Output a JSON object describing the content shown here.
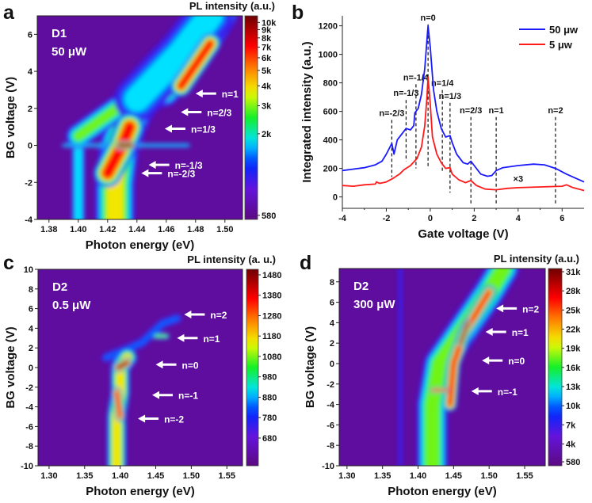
{
  "chart_data": [
    {
      "panel": "a",
      "type": "heatmap",
      "sample": "D1",
      "power": "50 μW",
      "xlabel": "Photon energy (eV)",
      "ylabel": "BG voltage (V)",
      "xlim": [
        1.372,
        1.512
      ],
      "ylim": [
        -4,
        7
      ],
      "xticks": [
        "1.38",
        "1.40",
        "1.42",
        "1.44",
        "1.46",
        "1.48",
        "1.50"
      ],
      "yticks": [
        "-4",
        "-2",
        "0",
        "2",
        "4",
        "6"
      ],
      "colorbar": {
        "title": "PL intensity (a.u.)",
        "scale": "log",
        "range": [
          580,
          11000
        ],
        "ticks": [
          "10k",
          "9k",
          "8k",
          "7k",
          "6k",
          "5k",
          "4k",
          "3k",
          "2k",
          "580"
        ],
        "tick_values": [
          10000,
          9000,
          8000,
          7000,
          6000,
          5000,
          4000,
          3000,
          2000,
          580
        ]
      },
      "ridges": [
        {
          "points": [
            [
              1.4,
              -4
            ],
            [
              1.4,
              0.2
            ]
          ],
          "peak": 0.45,
          "width": 0.012
        },
        {
          "points": [
            [
              1.425,
              -4
            ],
            [
              1.425,
              -2
            ],
            [
              1.428,
              0
            ],
            [
              1.435,
              1.5
            ],
            [
              1.44,
              2.3
            ]
          ],
          "peak": 0.7,
          "width": 0.03
        },
        {
          "points": [
            [
              1.4,
              0.5
            ],
            [
              1.43,
              2.2
            ],
            [
              1.46,
              2.8
            ],
            [
              1.48,
              4.5
            ],
            [
              1.5,
              7
            ]
          ],
          "peak": 0.55,
          "width": 0.02
        },
        {
          "points": [
            [
              1.44,
              2.5
            ],
            [
              1.47,
              5
            ],
            [
              1.49,
              7
            ]
          ],
          "peak": 0.45,
          "width": 0.04
        },
        {
          "points": [
            [
              1.39,
              0
            ],
            [
              1.475,
              0
            ]
          ],
          "peak": 0.38,
          "width": 0.004
        },
        {
          "points": [
            [
              1.42,
              -1.5
            ],
            [
              1.43,
              0
            ],
            [
              1.435,
              1
            ]
          ],
          "peak": 0.9,
          "width": 0.02
        },
        {
          "points": [
            [
              1.47,
              3.2
            ],
            [
              1.49,
              5.5
            ]
          ],
          "peak": 0.85,
          "width": 0.015
        },
        {
          "points": [
            [
              1.428,
              0
            ],
            [
              1.436,
              0
            ]
          ],
          "peak": 1.0,
          "width": 0.006
        }
      ],
      "annotations": [
        {
          "label": "n=1",
          "x": 1.48,
          "y": 2.8
        },
        {
          "label": "n=2/3",
          "x": 1.47,
          "y": 1.8
        },
        {
          "label": "n=1/3",
          "x": 1.459,
          "y": 0.9
        },
        {
          "label": "n=-1/3",
          "x": 1.448,
          "y": -1.05
        },
        {
          "label": "n=-2/3",
          "x": 1.443,
          "y": -1.5
        }
      ]
    },
    {
      "panel": "b",
      "type": "line",
      "xlabel": "Gate voltage (V)",
      "ylabel": "Integrated intensity (a.u.)",
      "xlim": [
        -4,
        7
      ],
      "ylim": [
        -80,
        1270
      ],
      "xticks": [
        "-4",
        "-2",
        "0",
        "2",
        "4",
        "6"
      ],
      "xtick_values": [
        -4,
        -2,
        0,
        2,
        4,
        6
      ],
      "yticks": [
        "0",
        "200",
        "400",
        "600",
        "800",
        "1000",
        "1200"
      ],
      "ytick_values": [
        0,
        200,
        400,
        600,
        800,
        1000,
        1200
      ],
      "legend_position": "top-right",
      "series": [
        {
          "name": "50 μw",
          "color": "#1a1aff",
          "x": [
            -4,
            -3.5,
            -3,
            -2.5,
            -2.2,
            -2,
            -1.75,
            -1.65,
            -1.5,
            -1.2,
            -1.1,
            -0.9,
            -0.75,
            -0.7,
            -0.55,
            -0.4,
            -0.25,
            -0.1,
            0,
            0.15,
            0.3,
            0.5,
            0.7,
            0.9,
            1.0,
            1.2,
            1.5,
            1.7,
            1.85,
            2.0,
            2.3,
            2.6,
            2.8,
            3.0,
            3.3,
            4,
            4.7,
            5.2,
            5.7,
            6.2,
            7
          ],
          "y": [
            185,
            195,
            205,
            225,
            250,
            300,
            375,
            300,
            400,
            460,
            480,
            470,
            500,
            590,
            620,
            720,
            900,
            1200,
            1050,
            750,
            600,
            480,
            420,
            430,
            380,
            300,
            240,
            230,
            250,
            220,
            160,
            145,
            150,
            185,
            205,
            220,
            230,
            225,
            200,
            160,
            105
          ]
        },
        {
          "name": "5 μw",
          "color": "#ff1a1a",
          "x": [
            -4,
            -3.5,
            -3,
            -2.5,
            -2.45,
            -2.3,
            -2,
            -1.7,
            -1.4,
            -1.2,
            -0.9,
            -0.6,
            -0.4,
            -0.25,
            -0.15,
            -0.1,
            0,
            0.1,
            0.3,
            0.5,
            0.7,
            0.9,
            1.0,
            1.3,
            1.6,
            1.85,
            2.1,
            2.5,
            3,
            3.5,
            4,
            5,
            6,
            6.2,
            6.5,
            7
          ],
          "y": [
            80,
            75,
            85,
            90,
            105,
            95,
            105,
            130,
            160,
            190,
            220,
            270,
            350,
            500,
            700,
            840,
            650,
            420,
            300,
            240,
            200,
            205,
            160,
            120,
            100,
            115,
            80,
            55,
            50,
            60,
            65,
            70,
            75,
            85,
            65,
            45
          ]
        }
      ],
      "multiplier_note": {
        "label": "×3",
        "x": 4.0,
        "y": 105
      },
      "markers": [
        {
          "label": "n=-2/3",
          "x": -1.75,
          "y_top": 540,
          "y_bottom": 140
        },
        {
          "label": "n=-1/3",
          "x": -1.1,
          "y_top": 680,
          "y_bottom": 250
        },
        {
          "label": "n=-1/4",
          "x": -0.65,
          "y_top": 790,
          "y_bottom": 200
        },
        {
          "label": "n=0",
          "x": -0.1,
          "y_top": 1210,
          "y_bottom": 200
        },
        {
          "label": "n=1/4",
          "x": 0.55,
          "y_top": 750,
          "y_bottom": 170
        },
        {
          "label": "n=1/3",
          "x": 0.9,
          "y_top": 660,
          "y_bottom": 30
        },
        {
          "label": "n=2/3",
          "x": 1.85,
          "y_top": 560,
          "y_bottom": -60
        },
        {
          "label": "n=1",
          "x": 3.0,
          "y_top": 560,
          "y_bottom": -60
        },
        {
          "label": "n=2",
          "x": 5.7,
          "y_top": 560,
          "y_bottom": -60
        }
      ]
    },
    {
      "panel": "c",
      "type": "heatmap",
      "sample": "D2",
      "power": "0.5 μW",
      "xlabel": "Photon energy (eV)",
      "ylabel": "BG voltage (V)",
      "xlim": [
        1.2845,
        1.572
      ],
      "ylim": [
        -10,
        10
      ],
      "xticks": [
        "1.30",
        "1.35",
        "1.40",
        "1.45",
        "1.50",
        "1.55"
      ],
      "yticks": [
        "-10",
        "-8",
        "-6",
        "-4",
        "-2",
        "0",
        "2",
        "4",
        "6",
        "8",
        "10"
      ],
      "colorbar": {
        "title": "PL intensity (a. u.)",
        "scale": "linear",
        "range": [
          544,
          1507
        ],
        "ticks": [
          "1480",
          "1380",
          "1280",
          "1180",
          "1080",
          "980",
          "880",
          "780",
          "680"
        ],
        "tick_values": [
          1480,
          1380,
          1280,
          1180,
          1080,
          980,
          880,
          780,
          680
        ]
      },
      "ridges": [
        {
          "points": [
            [
              1.38,
              1
            ],
            [
              1.43,
              2.5
            ],
            [
              1.46,
              4.5
            ],
            [
              1.48,
              5
            ]
          ],
          "peak": 0.33,
          "width": 0.02
        },
        {
          "points": [
            [
              1.395,
              -10
            ],
            [
              1.395,
              -5
            ],
            [
              1.4,
              -2.5
            ],
            [
              1.4,
              0
            ],
            [
              1.41,
              1
            ]
          ],
          "peak": 0.72,
          "width": 0.03
        },
        {
          "points": [
            [
              1.45,
              3.2
            ],
            [
              1.465,
              3.2
            ]
          ],
          "peak": 0.55,
          "width": 0.01
        },
        {
          "points": [
            [
              1.395,
              -2.5
            ],
            [
              1.4,
              -5
            ]
          ],
          "peak": 0.88,
          "width": 0.015
        },
        {
          "points": [
            [
              1.397,
              0
            ],
            [
              1.41,
              0.5
            ]
          ],
          "peak": 0.96,
          "width": 0.015
        }
      ],
      "annotations": [
        {
          "label": "n=2",
          "x": 1.49,
          "y": 5.4
        },
        {
          "label": "n=1",
          "x": 1.48,
          "y": 3.0
        },
        {
          "label": "n=0",
          "x": 1.45,
          "y": 0.3
        },
        {
          "label": "n=-1",
          "x": 1.445,
          "y": -2.8
        },
        {
          "label": "n=-2",
          "x": 1.425,
          "y": -5.2
        }
      ]
    },
    {
      "panel": "d",
      "type": "heatmap",
      "sample": "D2",
      "power": "300 μW",
      "xlabel": "Photon energy (eV)",
      "ylabel": "BG voltage (V)",
      "xlim": [
        1.289,
        1.579
      ],
      "ylim": [
        -10,
        9.3
      ],
      "xticks": [
        "1.30",
        "1.35",
        "1.40",
        "1.45",
        "1.50",
        "1.55"
      ],
      "yticks": [
        "-10",
        "-8",
        "-6",
        "-4",
        "-2",
        "0",
        "2",
        "4",
        "6",
        "8"
      ],
      "colorbar": {
        "title": "PL intensity (a.u.)",
        "scale": "linear",
        "range": [
          580,
          31500
        ],
        "ticks": [
          "31k",
          "28k",
          "25k",
          "22k",
          "19k",
          "16k",
          "13k",
          "10k",
          "7k",
          "4k",
          "580"
        ],
        "tick_values": [
          31000,
          28000,
          25000,
          22000,
          19000,
          16000,
          13000,
          10000,
          7000,
          4000,
          580
        ]
      },
      "ridges": [
        {
          "points": [
            [
              1.375,
              -10
            ],
            [
              1.375,
              9.3
            ]
          ],
          "peak": 0.2,
          "width": 0.02
        },
        {
          "points": [
            [
              1.42,
              -10
            ],
            [
              1.42,
              -4
            ],
            [
              1.43,
              0
            ],
            [
              1.46,
              3
            ],
            [
              1.5,
              7
            ],
            [
              1.52,
              9.3
            ]
          ],
          "peak": 0.62,
          "width": 0.05
        },
        {
          "points": [
            [
              1.445,
              -4
            ],
            [
              1.45,
              0
            ],
            [
              1.465,
              3
            ],
            [
              1.5,
              7
            ]
          ],
          "peak": 0.85,
          "width": 0.02
        },
        {
          "points": [
            [
              1.42,
              -2.6
            ],
            [
              1.44,
              -2.6
            ]
          ],
          "peak": 0.85,
          "width": 0.008
        },
        {
          "points": [
            [
              1.46,
              2
            ],
            [
              1.47,
              4
            ]
          ],
          "peak": 0.98,
          "width": 0.01
        }
      ],
      "annotations": [
        {
          "label": "n=2",
          "x": 1.51,
          "y": 5.4
        },
        {
          "label": "n=1",
          "x": 1.495,
          "y": 3.1
        },
        {
          "label": "n=0",
          "x": 1.49,
          "y": 0.3
        },
        {
          "label": "n=-1",
          "x": 1.475,
          "y": -2.7
        }
      ]
    }
  ],
  "colors": {
    "background": "#5c0a80",
    "series_blue": "#1a1aff",
    "series_red": "#ff1a1a"
  }
}
